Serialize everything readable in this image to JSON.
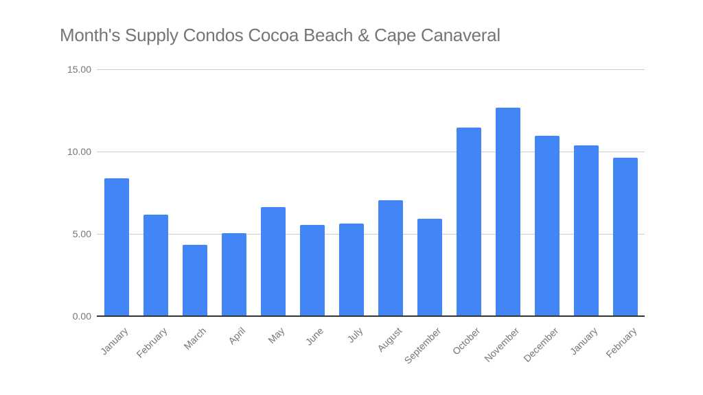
{
  "chart_data": {
    "type": "bar",
    "title": "Month's Supply Condos Cocoa Beach & Cape Canaveral",
    "xlabel": "",
    "ylabel": "",
    "ylim": [
      0,
      15
    ],
    "yticks": [
      "0.00",
      "5.00",
      "10.00",
      "15.00"
    ],
    "grid": true,
    "legend": null,
    "color": "#4285f4",
    "categories": [
      "January",
      "February",
      "March",
      "April",
      "May",
      "June",
      "July",
      "August",
      "September",
      "October",
      "November",
      "December",
      "January",
      "February"
    ],
    "values": [
      8.38,
      6.18,
      4.35,
      5.04,
      6.61,
      5.54,
      5.61,
      7.05,
      5.92,
      11.47,
      12.67,
      10.97,
      10.39,
      9.63
    ]
  }
}
